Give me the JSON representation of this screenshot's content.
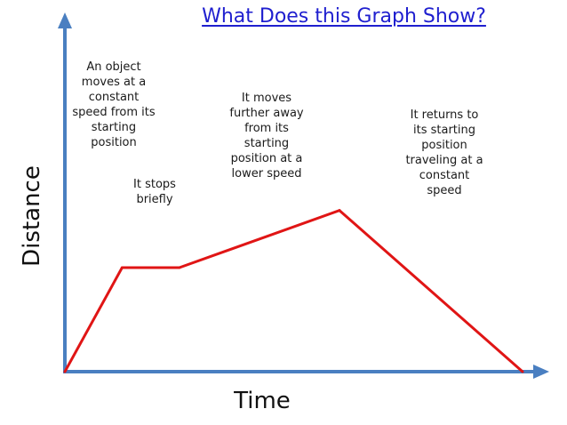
{
  "chart_data": {
    "type": "line",
    "title": "What Does this Graph Show?",
    "xlabel": "Time",
    "ylabel": "Distance",
    "x": [
      0,
      1,
      2,
      4.8,
      8
    ],
    "y": [
      0,
      1,
      1,
      1.55,
      0
    ],
    "xlim": [
      0,
      8
    ],
    "ylim": [
      0,
      3.4
    ],
    "grid": false,
    "line_color": "#e01515",
    "axis_color": "#4a7fc1",
    "annotations": [
      "An object\nmoves at a\nconstant\nspeed from its\nstarting\nposition",
      "It stops\nbriefly",
      "It moves\nfurther away\nfrom its\nstarting\nposition at a\nlower speed",
      "It returns to\nits starting\nposition\ntraveling at a\nconstant\nspeed"
    ]
  }
}
